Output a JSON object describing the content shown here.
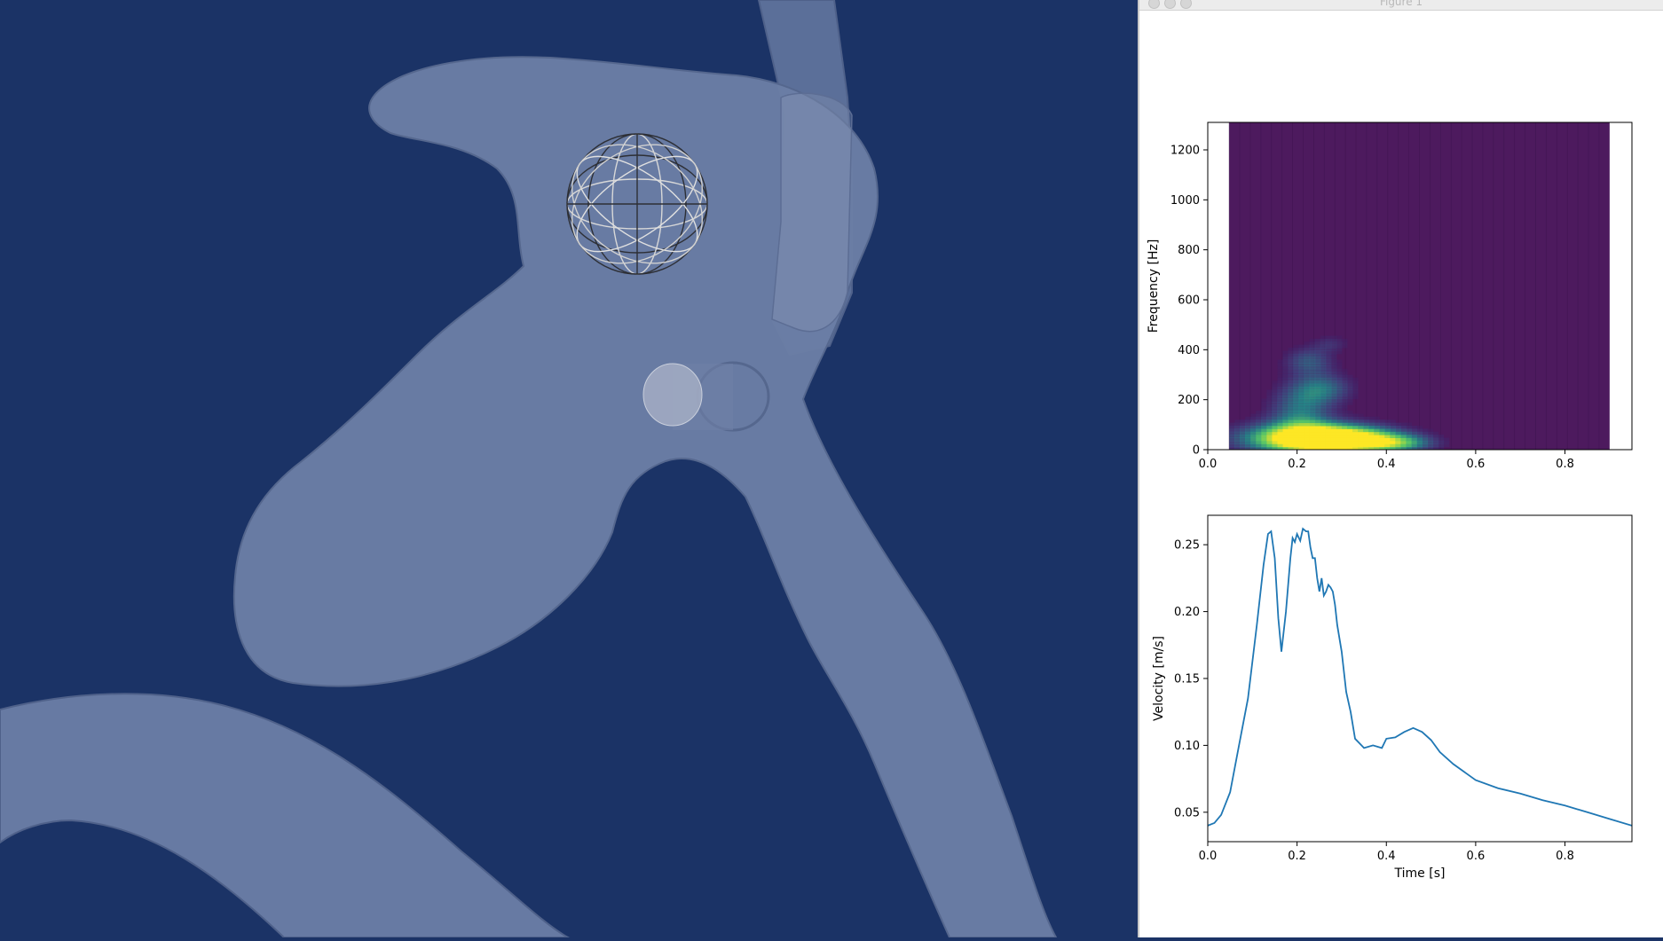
{
  "window": {
    "title": "Figure 1"
  },
  "colors": {
    "viewport_bg": "#1b3366",
    "vessel": "#6b7ea6",
    "vessel_edge": "#56688f",
    "spectrogram_bg": "#4d1a5e",
    "line": "#1f77b4"
  },
  "viewport": {
    "objects": [
      "vessel-surface",
      "wireframe-sphere-probe",
      "cylinder-probe"
    ]
  },
  "chart_data": [
    {
      "type": "heatmap",
      "title": "",
      "xlabel": "",
      "ylabel": "Frequency [Hz]",
      "xlim": [
        0.0,
        0.95
      ],
      "ylim": [
        0,
        1310
      ],
      "data_xrange": [
        0.048,
        0.9
      ],
      "xticks": [
        "0.0",
        "0.2",
        "0.4",
        "0.6",
        "0.8"
      ],
      "yticks": [
        "0",
        "200",
        "400",
        "600",
        "800",
        "1000",
        "1200"
      ],
      "colormap": "viridis",
      "energy_blobs": [
        {
          "t": 0.22,
          "f": 40,
          "peak": 1.0,
          "t_spread": 0.11,
          "f_spread": 45
        },
        {
          "t": 0.3,
          "f": 35,
          "peak": 0.75,
          "t_spread": 0.09,
          "f_spread": 35
        },
        {
          "t": 0.42,
          "f": 20,
          "peak": 0.45,
          "t_spread": 0.06,
          "f_spread": 25
        },
        {
          "t": 0.2,
          "f": 150,
          "peak": 0.42,
          "t_spread": 0.05,
          "f_spread": 70
        },
        {
          "t": 0.25,
          "f": 240,
          "peak": 0.4,
          "t_spread": 0.05,
          "f_spread": 45
        },
        {
          "t": 0.22,
          "f": 350,
          "peak": 0.35,
          "t_spread": 0.04,
          "f_spread": 40
        },
        {
          "t": 0.27,
          "f": 420,
          "peak": 0.18,
          "t_spread": 0.03,
          "f_spread": 25
        }
      ],
      "grid": false
    },
    {
      "type": "line",
      "title": "",
      "xlabel": "Time [s]",
      "ylabel": "Velocity [m/s]",
      "xlim": [
        0.0,
        0.95
      ],
      "ylim": [
        0.028,
        0.272
      ],
      "xticks": [
        "0.0",
        "0.2",
        "0.4",
        "0.6",
        "0.8"
      ],
      "yticks": [
        "0.05",
        "0.10",
        "0.15",
        "0.20",
        "0.25"
      ],
      "grid": false,
      "series": [
        {
          "x": [
            0.0,
            0.015,
            0.03,
            0.05,
            0.07,
            0.09,
            0.11,
            0.125,
            0.135,
            0.142,
            0.15,
            0.158,
            0.165,
            0.175,
            0.185,
            0.19,
            0.195,
            0.2,
            0.207,
            0.213,
            0.22,
            0.225,
            0.23,
            0.235,
            0.24,
            0.245,
            0.25,
            0.255,
            0.26,
            0.265,
            0.27,
            0.275,
            0.28,
            0.285,
            0.29,
            0.3,
            0.31,
            0.32,
            0.33,
            0.35,
            0.37,
            0.39,
            0.4,
            0.42,
            0.44,
            0.46,
            0.48,
            0.5,
            0.52,
            0.55,
            0.6,
            0.65,
            0.7,
            0.75,
            0.8,
            0.85,
            0.9,
            0.95
          ],
          "y": [
            0.04,
            0.042,
            0.048,
            0.065,
            0.1,
            0.135,
            0.19,
            0.235,
            0.258,
            0.26,
            0.24,
            0.195,
            0.17,
            0.2,
            0.24,
            0.255,
            0.252,
            0.258,
            0.253,
            0.262,
            0.26,
            0.26,
            0.248,
            0.24,
            0.24,
            0.225,
            0.215,
            0.225,
            0.212,
            0.215,
            0.22,
            0.218,
            0.215,
            0.205,
            0.19,
            0.17,
            0.14,
            0.125,
            0.105,
            0.098,
            0.1,
            0.098,
            0.105,
            0.106,
            0.11,
            0.113,
            0.11,
            0.104,
            0.095,
            0.086,
            0.074,
            0.068,
            0.064,
            0.059,
            0.055,
            0.05,
            0.045,
            0.04
          ]
        }
      ]
    }
  ]
}
